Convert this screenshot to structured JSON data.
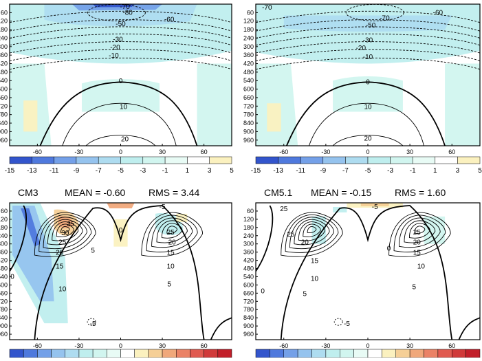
{
  "colors": {
    "neg15": "#3355cc",
    "neg13": "#4f79dd",
    "neg11": "#74a0e8",
    "neg9": "#95c3ee",
    "neg7": "#aedcf0",
    "neg5": "#bfeeee",
    "neg3": "#d1f5ef",
    "neg1": "#e8fbf5",
    "pos1": "#ffffff",
    "pos3": "#fbf1bf",
    "pos5": "#f5cf96",
    "pos7": "#f0a87b",
    "pos9": "#ea8266",
    "pos11": "#e05a50",
    "pos13": "#d03a3a",
    "pos15": "#c21f2a"
  },
  "chart_data": [
    {
      "type": "heatmap",
      "panel": "top-left",
      "title": "",
      "x_ticks": [
        "-60",
        "-30",
        "0",
        "30",
        "60"
      ],
      "y_ticks": [
        "60",
        "120",
        "180",
        "240",
        "300",
        "360",
        "420",
        "480",
        "540",
        "600",
        "660",
        "720",
        "780",
        "840",
        "900",
        "960"
      ],
      "xlim": [
        -80,
        80
      ],
      "ylim": [
        0,
        1000
      ],
      "contour_labels": [
        "-70",
        "-80",
        "-60",
        "-50",
        "-30",
        "-20",
        "-10",
        "0",
        "10",
        "20"
      ],
      "colorbar_ticks": [
        "-15",
        "-13",
        "-11",
        "-9",
        "-7",
        "-5",
        "-3",
        "-1",
        "1",
        "3",
        "5"
      ]
    },
    {
      "type": "heatmap",
      "panel": "top-right",
      "title": "",
      "x_ticks": [
        "-60",
        "-30",
        "0",
        "30",
        "60"
      ],
      "y_ticks": [
        "60",
        "120",
        "180",
        "240",
        "300",
        "360",
        "420",
        "480",
        "540",
        "600",
        "660",
        "720",
        "780",
        "840",
        "900",
        "960"
      ],
      "xlim": [
        -80,
        80
      ],
      "ylim": [
        0,
        1000
      ],
      "contour_labels": [
        "-70",
        "-60",
        "-70",
        "-50",
        "-30",
        "-20",
        "-10",
        "0",
        "10",
        "20"
      ],
      "colorbar_ticks": [
        "-15",
        "-13",
        "-11",
        "-9",
        "-7",
        "-5",
        "-3",
        "-1",
        "1",
        "3",
        "5"
      ]
    },
    {
      "type": "heatmap",
      "panel": "bottom-left",
      "title": "CM3",
      "mean_label": "MEAN = -0.60",
      "rms_label": "RMS =  3.44",
      "x_ticks": [
        "-60",
        "-30",
        "0",
        "30",
        "60"
      ],
      "y_ticks": [
        "60",
        "120",
        "180",
        "240",
        "300",
        "360",
        "420",
        "480",
        "540",
        "600",
        "660",
        "720",
        "780",
        "840",
        "900",
        "960"
      ],
      "xlim": [
        -80,
        80
      ],
      "ylim": [
        0,
        1000
      ],
      "contour_labels": [
        "-5",
        "35",
        "30",
        "25",
        "20",
        "15",
        "10",
        "5",
        "0",
        "25",
        "20",
        "15",
        "10",
        "5",
        "0",
        "-5"
      ],
      "colorbar_ticks": []
    },
    {
      "type": "heatmap",
      "panel": "bottom-right",
      "title": "CM5.1",
      "mean_label": "MEAN = -0.15",
      "rms_label": "RMS =  1.60",
      "x_ticks": [
        "-60",
        "-30",
        "0",
        "30",
        "60"
      ],
      "y_ticks": [
        "60",
        "120",
        "180",
        "240",
        "300",
        "360",
        "420",
        "480",
        "540",
        "600",
        "660",
        "720",
        "780",
        "840",
        "900",
        "960"
      ],
      "xlim": [
        -80,
        80
      ],
      "ylim": [
        0,
        1000
      ],
      "contour_labels": [
        "-5",
        "25",
        "25",
        "20",
        "15",
        "10",
        "5",
        "0",
        "25",
        "20",
        "15",
        "10",
        "5",
        "0",
        "-5"
      ],
      "colorbar_ticks": []
    }
  ]
}
